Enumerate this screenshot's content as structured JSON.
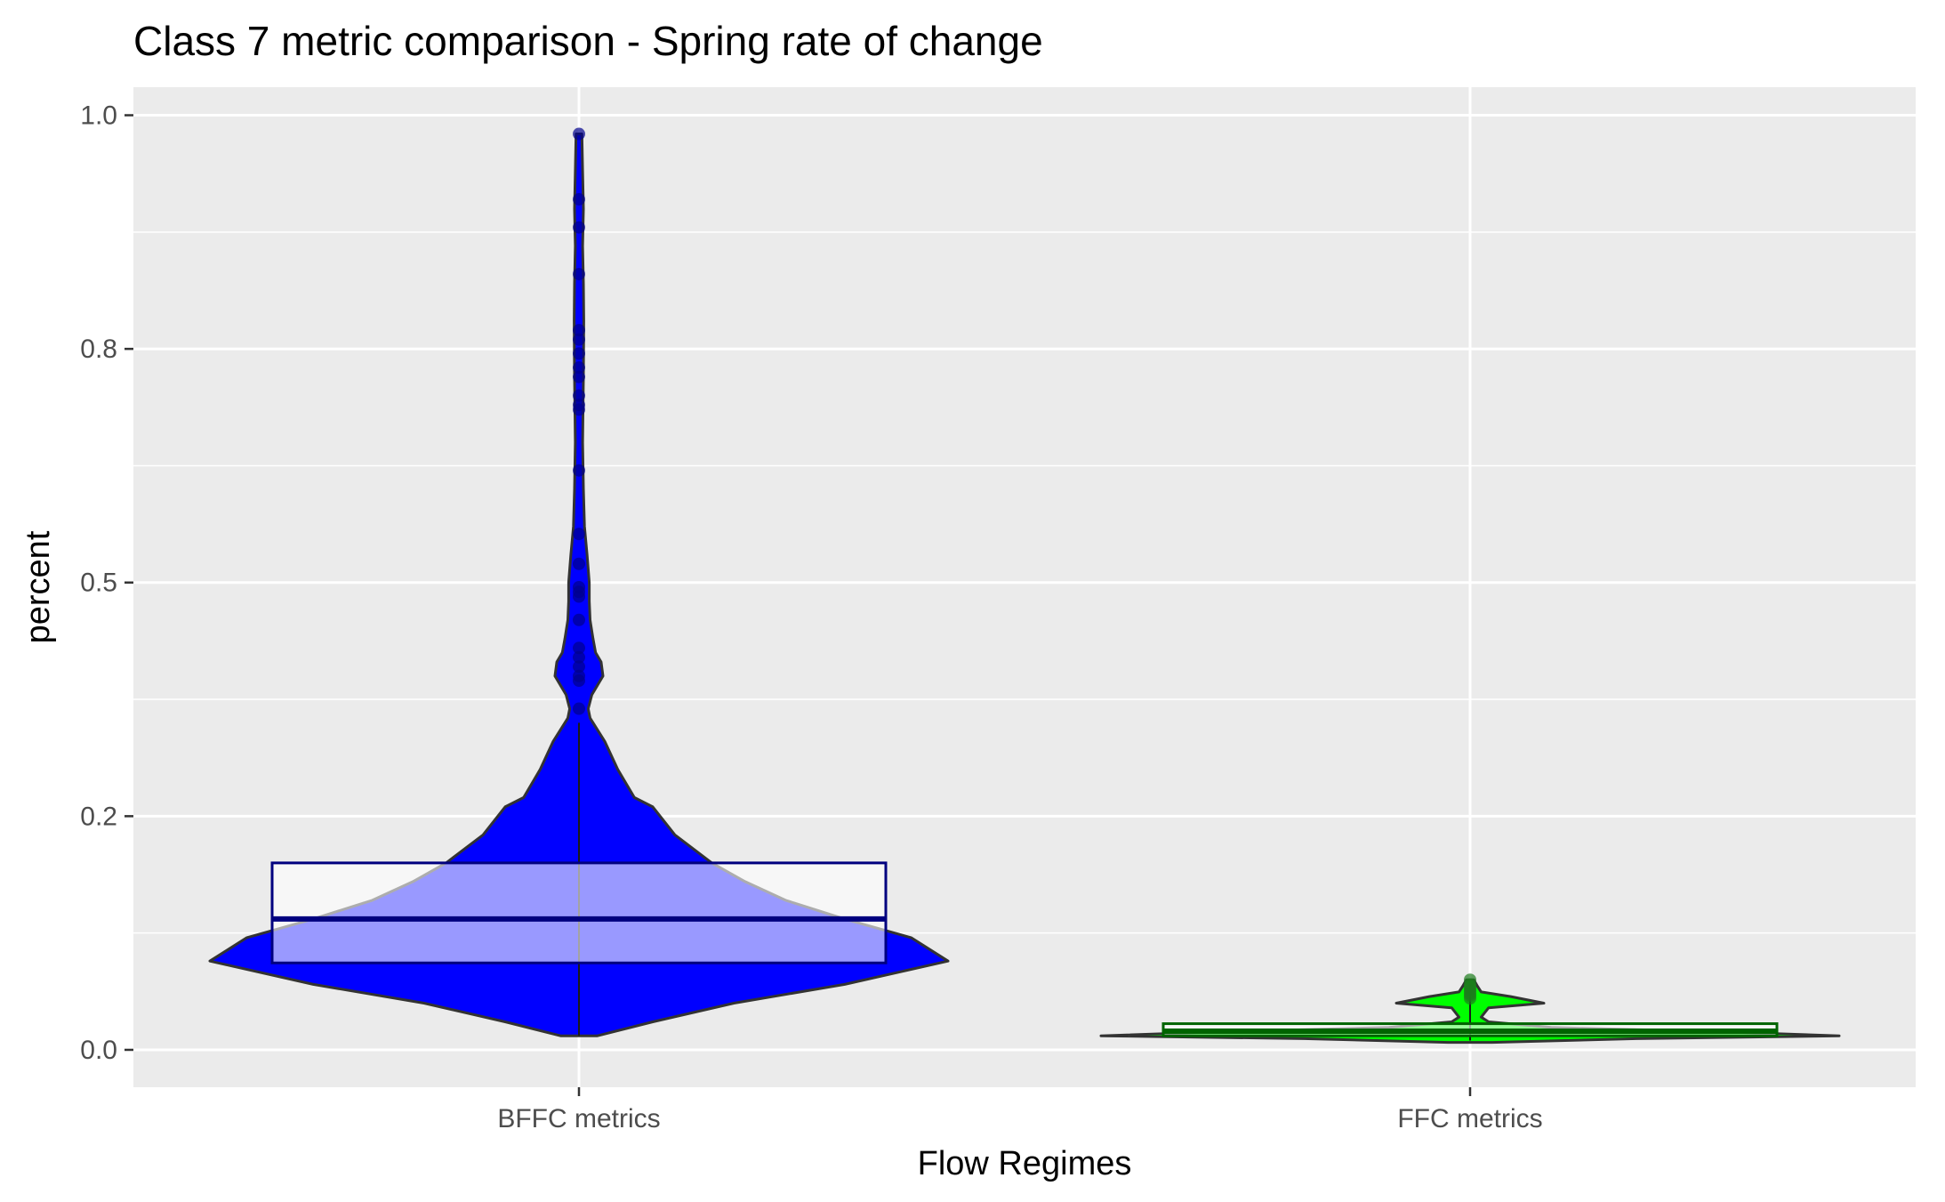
{
  "chart_data": {
    "type": "violin",
    "title": "Class 7 metric comparison - Spring rate of change",
    "xlabel": "Flow Regimes",
    "ylabel": "percent",
    "ylim": [
      -0.04,
      1.03
    ],
    "y_ticks": [
      {
        "value": 0.0,
        "label": "0.0"
      },
      {
        "value": 0.25,
        "label": "0.2"
      },
      {
        "value": 0.5,
        "label": "0.5"
      },
      {
        "value": 0.75,
        "label": "0.8"
      },
      {
        "value": 1.0,
        "label": "1.0"
      }
    ],
    "y_minor_ticks": [
      0.125,
      0.375,
      0.625,
      0.875
    ],
    "grid": true,
    "legend": "none",
    "categories": [
      "BFFC metrics",
      "FFC metrics"
    ],
    "series": [
      {
        "category": "BFFC metrics",
        "fill": "#0000ff",
        "box_color": "#00007f",
        "point_color": "#00008b",
        "box": {
          "q1": 0.093,
          "median": 0.14,
          "q3": 0.2,
          "whisker_low": 0.015,
          "whisker_high": 0.35
        },
        "density": [
          [
            0.015,
            0.05
          ],
          [
            0.03,
            0.2
          ],
          [
            0.05,
            0.42
          ],
          [
            0.07,
            0.72
          ],
          [
            0.095,
            1.0
          ],
          [
            0.12,
            0.9
          ],
          [
            0.14,
            0.72
          ],
          [
            0.16,
            0.56
          ],
          [
            0.18,
            0.45
          ],
          [
            0.2,
            0.36
          ],
          [
            0.23,
            0.26
          ],
          [
            0.26,
            0.2
          ],
          [
            0.27,
            0.15
          ],
          [
            0.3,
            0.105
          ],
          [
            0.33,
            0.07
          ],
          [
            0.355,
            0.03
          ],
          [
            0.365,
            0.025
          ],
          [
            0.38,
            0.035
          ],
          [
            0.4,
            0.065
          ],
          [
            0.415,
            0.06
          ],
          [
            0.425,
            0.045
          ],
          [
            0.44,
            0.038
          ],
          [
            0.46,
            0.03
          ],
          [
            0.48,
            0.028
          ],
          [
            0.5,
            0.028
          ],
          [
            0.53,
            0.022
          ],
          [
            0.56,
            0.015
          ],
          [
            0.6,
            0.012
          ],
          [
            0.65,
            0.01
          ],
          [
            0.72,
            0.012
          ],
          [
            0.78,
            0.013
          ],
          [
            0.82,
            0.012
          ],
          [
            0.86,
            0.01
          ],
          [
            0.9,
            0.012
          ],
          [
            0.94,
            0.01
          ],
          [
            0.98,
            0.008
          ]
        ],
        "points": [
          0.98,
          0.91,
          0.88,
          0.83,
          0.77,
          0.76,
          0.745,
          0.73,
          0.72,
          0.7,
          0.69,
          0.685,
          0.62,
          0.552,
          0.52,
          0.495,
          0.49,
          0.485,
          0.46,
          0.43,
          0.42,
          0.41,
          0.4,
          0.395,
          0.365
        ]
      },
      {
        "category": "FFC metrics",
        "fill": "#00ff00",
        "box_color": "#006400",
        "point_color": "#1c7c1c",
        "box": {
          "q1": 0.015,
          "median": 0.02,
          "q3": 0.028,
          "whisker_low": 0.01,
          "whisker_high": 0.07
        },
        "density": [
          [
            0.008,
            0.06
          ],
          [
            0.012,
            0.45
          ],
          [
            0.015,
            1.0
          ],
          [
            0.019,
            0.7
          ],
          [
            0.024,
            0.22
          ],
          [
            0.03,
            0.05
          ],
          [
            0.035,
            0.03
          ],
          [
            0.045,
            0.05
          ],
          [
            0.05,
            0.2
          ],
          [
            0.057,
            0.11
          ],
          [
            0.062,
            0.03
          ],
          [
            0.068,
            0.02
          ],
          [
            0.075,
            0.01
          ]
        ],
        "points": [
          0.075,
          0.07,
          0.068,
          0.065,
          0.063,
          0.06,
          0.058,
          0.055
        ]
      }
    ]
  }
}
